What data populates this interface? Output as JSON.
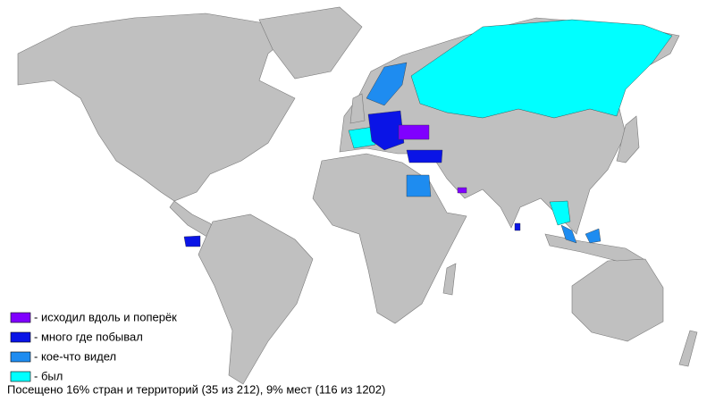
{
  "legend": [
    {
      "label": "- исходил вдоль и поперёк",
      "color": "#8000ff"
    },
    {
      "label": "- много где побывал",
      "color": "#0a14e6"
    },
    {
      "label": "- кое-что видел",
      "color": "#1e8cf0"
    },
    {
      "label": "- был",
      "color": "#00ffff"
    }
  ],
  "footer": "Посещено 16% стран и территорий (35 из 212), 9% мест (116 из 1202)"
}
